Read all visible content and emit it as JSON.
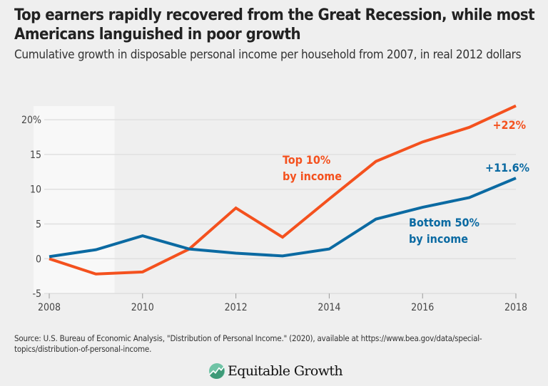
{
  "title": "Top earners rapidly recovered from the Great Recession, while most Americans languished in poor growth",
  "subtitle": "Cumulative growth in disposable personal income per household from 2007, in real 2012 dollars",
  "source": "Source: U.S. Bureau of Economic Analysis, \"Distribution of Personal Income.\" (2020), available at https://www.bea.gov/data/special-topics/distribution-of-personal-income.",
  "logo": "Equitable Growth",
  "chart_data": {
    "type": "line",
    "x": [
      2008,
      2009,
      2010,
      2011,
      2012,
      2013,
      2014,
      2015,
      2016,
      2017,
      2018
    ],
    "xlim": [
      2008,
      2018
    ],
    "ylim": [
      -5,
      22
    ],
    "xticks": [
      "2008",
      "2010",
      "2012",
      "2014",
      "2016",
      "2018"
    ],
    "yticks": [
      "20%",
      "15",
      "10",
      "5",
      "0",
      "-5"
    ],
    "grid": true,
    "shaded_region": [
      2008,
      2009.4
    ],
    "series": [
      {
        "name": "Top 10%\nby income",
        "label_lines": [
          "Top 10%",
          "by income"
        ],
        "end_label": "+22%",
        "color": "#f4511e",
        "values": [
          0,
          -2.2,
          -1.9,
          1.4,
          7.3,
          3.1,
          8.6,
          14.0,
          16.8,
          18.9,
          22.0
        ]
      },
      {
        "name": "Bottom 50%\nby income",
        "label_lines": [
          "Bottom 50%",
          "by income"
        ],
        "end_label": "+11.6%",
        "color": "#0b6aa2",
        "values": [
          0.3,
          1.3,
          3.3,
          1.4,
          0.8,
          0.4,
          1.4,
          5.7,
          7.4,
          8.8,
          11.6
        ]
      }
    ]
  }
}
